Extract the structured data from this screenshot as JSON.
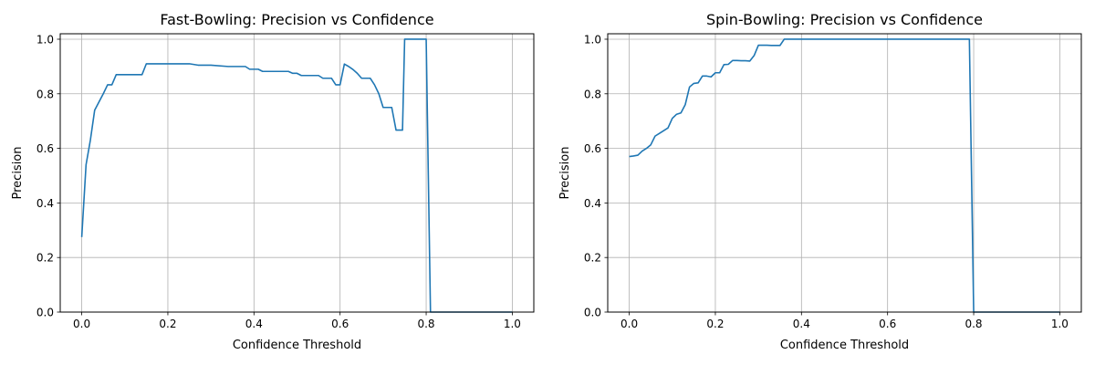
{
  "figure": {
    "background": "#ffffff",
    "line_color": "#1f77b4",
    "grid_color": "#b0b0b0"
  },
  "chart_data": [
    {
      "type": "line",
      "title": "Fast-Bowling: Precision vs Confidence",
      "xlabel": "Confidence Threshold",
      "ylabel": "Precision",
      "xlim": [
        -0.05,
        1.05
      ],
      "ylim": [
        0.0,
        1.02
      ],
      "xticks": [
        0.0,
        0.2,
        0.4,
        0.6,
        0.8,
        1.0
      ],
      "xtick_labels": [
        "0.0",
        "0.2",
        "0.4",
        "0.6",
        "0.8",
        "1.0"
      ],
      "yticks": [
        0.0,
        0.2,
        0.4,
        0.6,
        0.8,
        1.0
      ],
      "ytick_labels": [
        "0.0",
        "0.2",
        "0.4",
        "0.6",
        "0.8",
        "1.0"
      ],
      "grid": true,
      "series": [
        {
          "color": "#1f77b4",
          "x": [
            0.0,
            0.01,
            0.02,
            0.03,
            0.04,
            0.05,
            0.06,
            0.07,
            0.08,
            0.09,
            0.1,
            0.11,
            0.12,
            0.13,
            0.14,
            0.15,
            0.16,
            0.2,
            0.25,
            0.27,
            0.28,
            0.3,
            0.34,
            0.35,
            0.38,
            0.39,
            0.4,
            0.41,
            0.42,
            0.47,
            0.48,
            0.49,
            0.5,
            0.51,
            0.55,
            0.56,
            0.57,
            0.58,
            0.59,
            0.6,
            0.61,
            0.62,
            0.63,
            0.64,
            0.65,
            0.66,
            0.67,
            0.68,
            0.69,
            0.7,
            0.71,
            0.72,
            0.73,
            0.74,
            0.745,
            0.75,
            0.76,
            0.8,
            0.805,
            0.81,
            0.82,
            1.0
          ],
          "y": [
            0.275,
            0.54,
            0.63,
            0.74,
            0.77,
            0.8,
            0.833,
            0.833,
            0.87,
            0.87,
            0.87,
            0.87,
            0.87,
            0.87,
            0.87,
            0.91,
            0.91,
            0.91,
            0.91,
            0.905,
            0.905,
            0.905,
            0.9,
            0.9,
            0.9,
            0.89,
            0.89,
            0.89,
            0.882,
            0.882,
            0.882,
            0.875,
            0.875,
            0.867,
            0.867,
            0.857,
            0.857,
            0.857,
            0.833,
            0.833,
            0.909,
            0.9,
            0.889,
            0.875,
            0.857,
            0.857,
            0.857,
            0.833,
            0.8,
            0.75,
            0.75,
            0.75,
            0.667,
            0.667,
            0.667,
            1.0,
            1.0,
            1.0,
            0.5,
            0.0,
            0.0,
            0.0
          ]
        }
      ]
    },
    {
      "type": "line",
      "title": "Spin-Bowling: Precision vs Confidence",
      "xlabel": "Confidence Threshold",
      "ylabel": "Precision",
      "xlim": [
        -0.05,
        1.05
      ],
      "ylim": [
        0.0,
        1.02
      ],
      "xticks": [
        0.0,
        0.2,
        0.4,
        0.6,
        0.8,
        1.0
      ],
      "xtick_labels": [
        "0.0",
        "0.2",
        "0.4",
        "0.6",
        "0.8",
        "1.0"
      ],
      "yticks": [
        0.0,
        0.2,
        0.4,
        0.6,
        0.8,
        1.0
      ],
      "ytick_labels": [
        "0.0",
        "0.2",
        "0.4",
        "0.6",
        "0.8",
        "1.0"
      ],
      "grid": true,
      "series": [
        {
          "color": "#1f77b4",
          "x": [
            0.0,
            0.01,
            0.02,
            0.03,
            0.04,
            0.05,
            0.06,
            0.07,
            0.08,
            0.09,
            0.1,
            0.11,
            0.12,
            0.13,
            0.14,
            0.15,
            0.16,
            0.17,
            0.18,
            0.19,
            0.2,
            0.21,
            0.22,
            0.23,
            0.24,
            0.25,
            0.26,
            0.27,
            0.28,
            0.29,
            0.3,
            0.31,
            0.32,
            0.33,
            0.34,
            0.35,
            0.36,
            0.4,
            0.5,
            0.6,
            0.7,
            0.79,
            0.795,
            0.8,
            1.0
          ],
          "y": [
            0.57,
            0.572,
            0.575,
            0.59,
            0.6,
            0.613,
            0.645,
            0.655,
            0.665,
            0.675,
            0.71,
            0.725,
            0.73,
            0.76,
            0.825,
            0.838,
            0.84,
            0.865,
            0.865,
            0.862,
            0.877,
            0.877,
            0.907,
            0.908,
            0.922,
            0.922,
            0.921,
            0.921,
            0.92,
            0.94,
            0.978,
            0.978,
            0.978,
            0.977,
            0.977,
            0.977,
            1.0,
            1.0,
            1.0,
            1.0,
            1.0,
            1.0,
            0.5,
            0.0,
            0.0
          ]
        }
      ]
    }
  ]
}
